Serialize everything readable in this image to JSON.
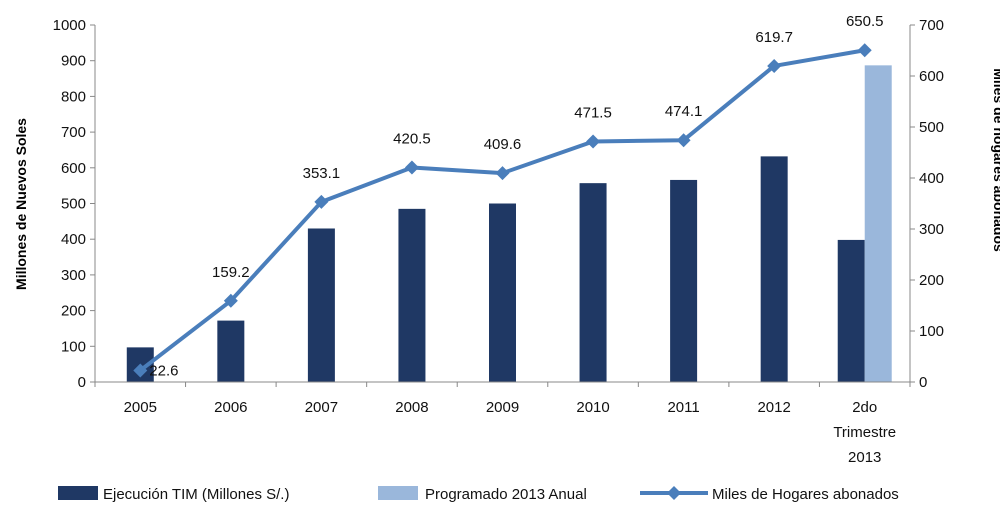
{
  "chart_data": {
    "type": "bar",
    "categories": [
      "2005",
      "2006",
      "2007",
      "2008",
      "2009",
      "2010",
      "2011",
      "2012",
      "2do Trimestre 2013"
    ],
    "category_lines": [
      [
        "2005"
      ],
      [
        "2006"
      ],
      [
        "2007"
      ],
      [
        "2008"
      ],
      [
        "2009"
      ],
      [
        "2010"
      ],
      [
        "2011"
      ],
      [
        "2012"
      ],
      [
        "2do",
        "Trimestre",
        "2013"
      ]
    ],
    "ylabel": "Millones de Nuevos Soles",
    "y2label": "Miles de hogares abonados",
    "ylim": [
      0,
      1000
    ],
    "y2lim": [
      0,
      700
    ],
    "yticks": [
      0,
      100,
      200,
      300,
      400,
      500,
      600,
      700,
      800,
      900,
      1000
    ],
    "y2ticks": [
      0,
      100,
      200,
      300,
      400,
      500,
      600,
      700
    ],
    "grid": false,
    "legend_position": "bottom",
    "series": [
      {
        "name": "Ejecución TIM (Millones S/.)",
        "type": "bar",
        "axis": "left",
        "color": "#1f3864",
        "values": [
          97,
          172,
          430,
          485,
          500,
          557,
          566,
          632,
          398
        ]
      },
      {
        "name": "Programado 2013 Anual",
        "type": "bar",
        "axis": "left",
        "color": "#9ab7db",
        "values": [
          null,
          null,
          null,
          null,
          null,
          null,
          null,
          null,
          887
        ]
      },
      {
        "name": "Miles de Hogares abonados",
        "type": "line",
        "axis": "right",
        "color": "#4a7ebb",
        "marker": "diamond",
        "values": [
          22.6,
          159.2,
          353.1,
          420.5,
          409.6,
          471.5,
          474.1,
          619.7,
          650.5
        ],
        "labels": [
          "22.6",
          "159.2",
          "353.1",
          "420.5",
          "409.6",
          "471.5",
          "474.1",
          "619.7",
          "650.5"
        ]
      }
    ]
  }
}
